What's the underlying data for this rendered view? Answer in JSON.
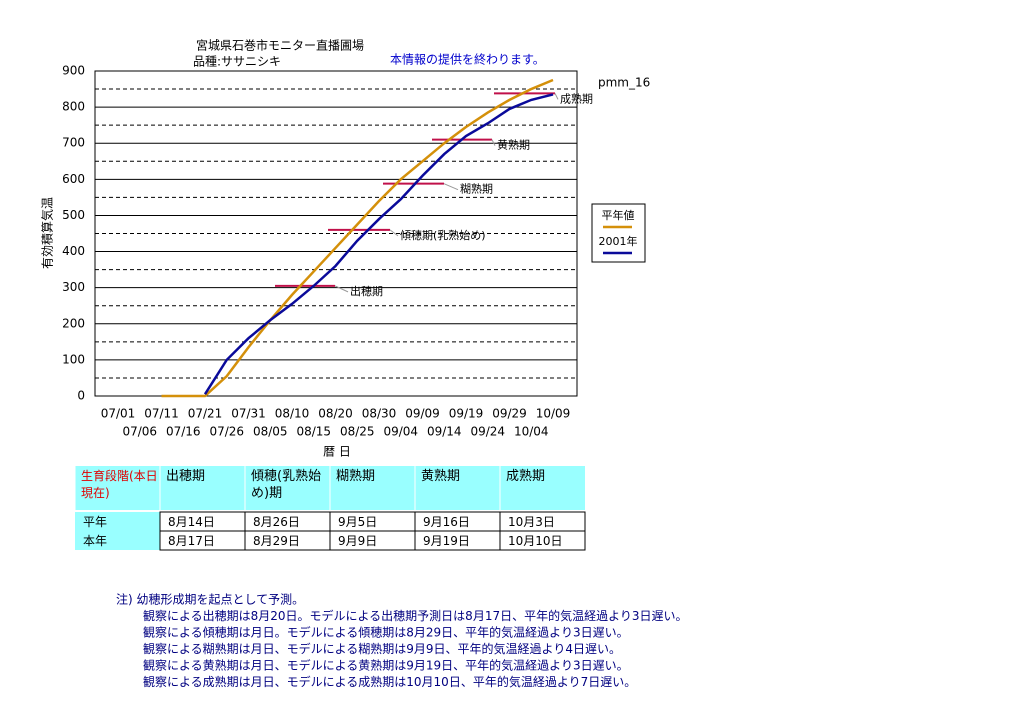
{
  "chart_data": {
    "type": "line",
    "title": "宮城県石巻市モニター直播圃場",
    "subtitle": "品種:ササニシキ",
    "notice": "本情報の提供を終わります。",
    "corner_label": "pmm_16",
    "y_label": "有効積算気温",
    "x_label": "暦 日",
    "x": [
      "07/01",
      "07/06",
      "07/11",
      "07/16",
      "07/21",
      "07/26",
      "07/31",
      "08/05",
      "08/10",
      "08/15",
      "08/20",
      "08/25",
      "08/30",
      "09/04",
      "09/09",
      "09/14",
      "09/19",
      "09/24",
      "09/29",
      "10/04",
      "10/09"
    ],
    "series": [
      {
        "name": "平年値",
        "color": "#d4900a",
        "values": [
          null,
          null,
          0,
          0,
          0,
          55,
          135,
          210,
          280,
          345,
          410,
          475,
          540,
          600,
          650,
          700,
          745,
          785,
          820,
          850,
          875
        ]
      },
      {
        "name": "2001年",
        "color": "#0a0a9a",
        "values": [
          null,
          null,
          null,
          null,
          5,
          100,
          160,
          210,
          255,
          305,
          360,
          430,
          490,
          545,
          610,
          670,
          720,
          755,
          795,
          820,
          835
        ]
      }
    ],
    "stages": [
      {
        "label": "出穂期",
        "value": 305
      },
      {
        "label": "傾穂期(乳熟始め)",
        "value": 460
      },
      {
        "label": "糊熟期",
        "value": 588
      },
      {
        "label": "黄熟期",
        "value": 710
      },
      {
        "label": "成熟期",
        "value": 838
      }
    ],
    "stage_color": "#c0104a",
    "ylim": [
      0,
      900
    ],
    "yticks": [
      0,
      100,
      200,
      300,
      400,
      500,
      600,
      700,
      800,
      900
    ],
    "grid": true,
    "minor_grid": true,
    "legend": "right"
  },
  "table": {
    "header": [
      "生育段階(本日現在)",
      "出穂期",
      "傾穂(乳熟始め)期",
      "糊熟期",
      "黄熟期",
      "成熟期"
    ],
    "rows": [
      [
        "平年",
        "8月14日",
        "8月26日",
        "9月5日",
        "9月16日",
        "10月3日"
      ],
      [
        "本年",
        "8月17日",
        "8月29日",
        "9月9日",
        "9月19日",
        "10月10日"
      ]
    ]
  },
  "notes": [
    "注) 幼穂形成期を起点として予測。",
    "観察による出穂期は8月20日。モデルによる出穂期予測日は8月17日、平年的気温経過より3日遅い。",
    "観察による傾穂期は月日。モデルによる傾穂期は8月29日、平年的気温経過より3日遅い。",
    "観察による糊熟期は月日、モデルによる糊熟期は9月9日、平年的気温経過より4日遅い。",
    "観察による黄熟期は月日、モデルによる黄熟期は9月19日、平年的気温経過より3日遅い。",
    "観察による成熟期は月日、モデルによる成熟期は10月10日、平年的気温経過より7日遅い。"
  ]
}
